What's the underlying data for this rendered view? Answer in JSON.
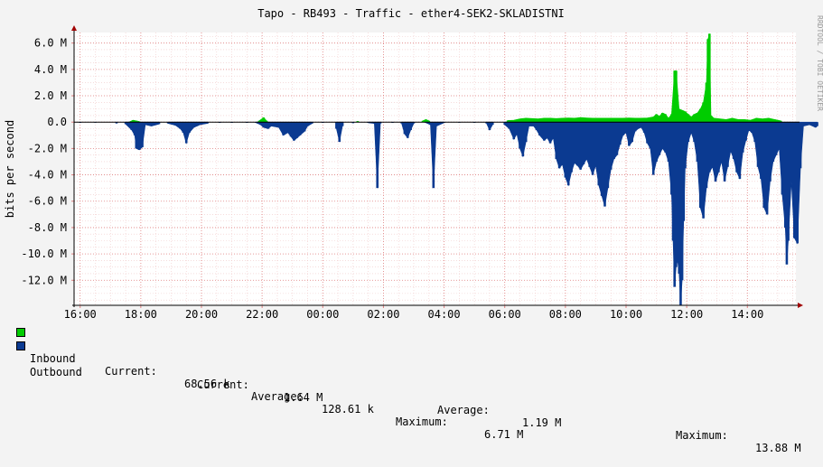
{
  "chart_data": {
    "type": "area",
    "title": "Tapo - RB493 - Traffic - ether4-SEK2-SKLADISTNI",
    "ylabel": "bits per second",
    "side_label": "RRDTOOL / TOBI OETIKER",
    "x_tick_labels": [
      "16:00",
      "18:00",
      "20:00",
      "22:00",
      "00:00",
      "02:00",
      "04:00",
      "06:00",
      "08:00",
      "10:00",
      "12:00",
      "14:00"
    ],
    "y_ticks": [
      6,
      4,
      2,
      0,
      -2,
      -4,
      -6,
      -8,
      -10,
      -12
    ],
    "y_tick_labels": [
      "6.0 M",
      "4.0 M",
      "2.0 M",
      "0.0",
      "-2.0 M",
      "-4.0 M",
      "-6.0 M",
      "-8.0 M",
      "-10.0 M",
      "-12.0 M"
    ],
    "ylim": [
      -13.9,
      6.8
    ],
    "xlim_hours": [
      15.8,
      39.6
    ],
    "grid": true,
    "series": [
      {
        "name": "Inbound",
        "color": "#00cc00",
        "unit": "M bit/s",
        "points": [
          [
            17.65,
            0.05
          ],
          [
            17.75,
            0.15
          ],
          [
            17.85,
            0.1
          ],
          [
            17.95,
            0.05
          ],
          [
            21.9,
            0.1
          ],
          [
            22.05,
            0.35
          ],
          [
            22.15,
            0.1
          ],
          [
            25.15,
            0.08
          ],
          [
            27.3,
            0.1
          ],
          [
            27.4,
            0.2
          ],
          [
            27.5,
            0.1
          ],
          [
            30.1,
            0.12
          ],
          [
            30.3,
            0.15
          ],
          [
            30.5,
            0.25
          ],
          [
            30.7,
            0.3
          ],
          [
            30.9,
            0.28
          ],
          [
            31.1,
            0.25
          ],
          [
            31.3,
            0.3
          ],
          [
            31.5,
            0.3
          ],
          [
            31.7,
            0.28
          ],
          [
            31.9,
            0.3
          ],
          [
            32.1,
            0.32
          ],
          [
            32.3,
            0.3
          ],
          [
            32.5,
            0.35
          ],
          [
            32.7,
            0.32
          ],
          [
            32.9,
            0.3
          ],
          [
            33.1,
            0.3
          ],
          [
            33.3,
            0.3
          ],
          [
            33.5,
            0.3
          ],
          [
            33.7,
            0.3
          ],
          [
            33.9,
            0.3
          ],
          [
            34.1,
            0.32
          ],
          [
            34.3,
            0.3
          ],
          [
            34.5,
            0.3
          ],
          [
            34.7,
            0.32
          ],
          [
            34.9,
            0.4
          ],
          [
            35.0,
            0.6
          ],
          [
            35.1,
            0.45
          ],
          [
            35.2,
            0.7
          ],
          [
            35.3,
            0.6
          ],
          [
            35.4,
            0.3
          ],
          [
            35.5,
            0.6
          ],
          [
            35.6,
            3.9
          ],
          [
            35.65,
            3.9
          ],
          [
            35.75,
            1.0
          ],
          [
            35.85,
            0.9
          ],
          [
            35.95,
            0.8
          ],
          [
            36.05,
            0.6
          ],
          [
            36.15,
            0.4
          ],
          [
            36.25,
            0.6
          ],
          [
            36.35,
            0.7
          ],
          [
            36.45,
            1.0
          ],
          [
            36.55,
            1.5
          ],
          [
            36.65,
            3.0
          ],
          [
            36.7,
            6.3
          ],
          [
            36.75,
            6.71
          ],
          [
            36.8,
            0.5
          ],
          [
            36.9,
            0.3
          ],
          [
            37.1,
            0.25
          ],
          [
            37.3,
            0.2
          ],
          [
            37.5,
            0.3
          ],
          [
            37.7,
            0.2
          ],
          [
            37.9,
            0.2
          ],
          [
            38.1,
            0.15
          ],
          [
            38.3,
            0.3
          ],
          [
            38.5,
            0.25
          ],
          [
            38.7,
            0.3
          ],
          [
            38.9,
            0.2
          ],
          [
            39.1,
            0.1
          ]
        ]
      },
      {
        "name": "Outbound",
        "color": "#0b3a91",
        "unit": "M bit/s",
        "points": [
          [
            16.0,
            -0.05
          ],
          [
            16.5,
            -0.04
          ],
          [
            17.2,
            -0.1
          ],
          [
            17.5,
            -0.15
          ],
          [
            17.7,
            -0.6
          ],
          [
            17.8,
            -1.0
          ],
          [
            17.85,
            -2.0
          ],
          [
            17.95,
            -2.1
          ],
          [
            18.05,
            -1.9
          ],
          [
            18.15,
            -0.2
          ],
          [
            18.35,
            -0.3
          ],
          [
            18.6,
            -0.15
          ],
          [
            18.9,
            -0.1
          ],
          [
            19.15,
            -0.25
          ],
          [
            19.3,
            -0.5
          ],
          [
            19.4,
            -0.8
          ],
          [
            19.5,
            -1.6
          ],
          [
            19.6,
            -0.8
          ],
          [
            19.75,
            -0.4
          ],
          [
            19.85,
            -0.3
          ],
          [
            19.95,
            -0.2
          ],
          [
            20.2,
            -0.1
          ],
          [
            20.6,
            -0.05
          ],
          [
            21.0,
            -0.05
          ],
          [
            21.5,
            -0.05
          ],
          [
            21.8,
            -0.05
          ],
          [
            21.95,
            -0.2
          ],
          [
            22.05,
            -0.4
          ],
          [
            22.2,
            -0.5
          ],
          [
            22.3,
            -0.3
          ],
          [
            22.55,
            -0.4
          ],
          [
            22.7,
            -1.0
          ],
          [
            22.85,
            -0.8
          ],
          [
            22.95,
            -1.1
          ],
          [
            23.05,
            -1.4
          ],
          [
            23.15,
            -1.2
          ],
          [
            23.25,
            -1.0
          ],
          [
            23.4,
            -0.7
          ],
          [
            23.5,
            -0.3
          ],
          [
            23.65,
            -0.1
          ],
          [
            24.0,
            -0.05
          ],
          [
            24.45,
            -0.5
          ],
          [
            24.55,
            -1.5
          ],
          [
            24.65,
            -0.3
          ],
          [
            25.0,
            -0.08
          ],
          [
            25.5,
            -0.05
          ],
          [
            25.7,
            -0.1
          ],
          [
            25.8,
            -5.0
          ],
          [
            25.9,
            -0.1
          ],
          [
            26.3,
            -0.05
          ],
          [
            26.6,
            -0.1
          ],
          [
            26.7,
            -0.9
          ],
          [
            26.8,
            -1.2
          ],
          [
            26.9,
            -0.6
          ],
          [
            27.0,
            -0.1
          ],
          [
            27.4,
            -0.05
          ],
          [
            27.55,
            -0.2
          ],
          [
            27.65,
            -5.0
          ],
          [
            27.75,
            -0.3
          ],
          [
            28.0,
            -0.05
          ],
          [
            28.5,
            -0.03
          ],
          [
            29.0,
            -0.05
          ],
          [
            29.4,
            -0.1
          ],
          [
            29.5,
            -0.6
          ],
          [
            29.6,
            -0.2
          ],
          [
            30.0,
            -0.2
          ],
          [
            30.15,
            -0.5
          ],
          [
            30.3,
            -1.3
          ],
          [
            30.4,
            -0.9
          ],
          [
            30.5,
            -2.0
          ],
          [
            30.6,
            -2.6
          ],
          [
            30.7,
            -1.5
          ],
          [
            30.8,
            -0.3
          ],
          [
            30.95,
            -0.3
          ],
          [
            31.05,
            -0.6
          ],
          [
            31.15,
            -1.0
          ],
          [
            31.3,
            -1.4
          ],
          [
            31.4,
            -1.2
          ],
          [
            31.5,
            -1.6
          ],
          [
            31.6,
            -1.2
          ],
          [
            31.7,
            -2.8
          ],
          [
            31.8,
            -3.5
          ],
          [
            31.9,
            -3.2
          ],
          [
            32.0,
            -4.2
          ],
          [
            32.1,
            -4.8
          ],
          [
            32.2,
            -3.8
          ],
          [
            32.3,
            -3.1
          ],
          [
            32.4,
            -3.3
          ],
          [
            32.5,
            -3.6
          ],
          [
            32.6,
            -3.2
          ],
          [
            32.7,
            -2.8
          ],
          [
            32.8,
            -3.4
          ],
          [
            32.9,
            -4.0
          ],
          [
            33.0,
            -3.3
          ],
          [
            33.1,
            -4.8
          ],
          [
            33.2,
            -5.6
          ],
          [
            33.3,
            -6.4
          ],
          [
            33.4,
            -5.0
          ],
          [
            33.5,
            -3.6
          ],
          [
            33.6,
            -2.8
          ],
          [
            33.7,
            -2.5
          ],
          [
            33.8,
            -1.7
          ],
          [
            33.9,
            -1.0
          ],
          [
            34.0,
            -0.8
          ],
          [
            34.1,
            -1.8
          ],
          [
            34.2,
            -1.5
          ],
          [
            34.3,
            -0.7
          ],
          [
            34.4,
            -0.5
          ],
          [
            34.5,
            -0.4
          ],
          [
            34.6,
            -0.8
          ],
          [
            34.7,
            -1.6
          ],
          [
            34.8,
            -2.0
          ],
          [
            34.9,
            -4.0
          ],
          [
            35.0,
            -3.0
          ],
          [
            35.1,
            -2.5
          ],
          [
            35.2,
            -2.0
          ],
          [
            35.3,
            -2.3
          ],
          [
            35.4,
            -3.0
          ],
          [
            35.5,
            -5.5
          ],
          [
            35.55,
            -9.0
          ],
          [
            35.6,
            -12.5
          ],
          [
            35.65,
            -11.0
          ],
          [
            35.7,
            -10.5
          ],
          [
            35.75,
            -11.5
          ],
          [
            35.8,
            -13.88
          ],
          [
            35.85,
            -12.0
          ],
          [
            35.9,
            -7.5
          ],
          [
            35.95,
            -3.5
          ],
          [
            36.05,
            -1.5
          ],
          [
            36.15,
            -0.8
          ],
          [
            36.25,
            -1.5
          ],
          [
            36.35,
            -3.0
          ],
          [
            36.45,
            -6.5
          ],
          [
            36.55,
            -7.3
          ],
          [
            36.65,
            -5.0
          ],
          [
            36.75,
            -3.8
          ],
          [
            36.85,
            -3.4
          ],
          [
            36.95,
            -4.5
          ],
          [
            37.05,
            -3.8
          ],
          [
            37.15,
            -3.0
          ],
          [
            37.25,
            -4.5
          ],
          [
            37.35,
            -3.4
          ],
          [
            37.45,
            -2.2
          ],
          [
            37.55,
            -2.8
          ],
          [
            37.65,
            -3.8
          ],
          [
            37.75,
            -4.3
          ],
          [
            37.85,
            -2.3
          ],
          [
            37.95,
            -1.4
          ],
          [
            38.05,
            -0.6
          ],
          [
            38.15,
            -0.8
          ],
          [
            38.25,
            -1.5
          ],
          [
            38.35,
            -3.4
          ],
          [
            38.45,
            -4.3
          ],
          [
            38.55,
            -6.5
          ],
          [
            38.65,
            -7.0
          ],
          [
            38.75,
            -4.5
          ],
          [
            38.85,
            -3.0
          ],
          [
            38.95,
            -2.5
          ],
          [
            39.05,
            -2.0
          ],
          [
            39.15,
            -5.5
          ],
          [
            39.25,
            -8.0
          ],
          [
            39.3,
            -10.8
          ],
          [
            39.35,
            -9.0
          ],
          [
            39.45,
            -4.5
          ],
          [
            39.55,
            -8.8
          ],
          [
            39.65,
            -9.2
          ],
          [
            39.75,
            -3.5
          ],
          [
            39.85,
            -0.3
          ],
          [
            40.05,
            -0.2
          ],
          [
            40.25,
            -0.4
          ],
          [
            40.3,
            -0.3
          ],
          [
            40.8,
            -0.1
          ],
          [
            41.4,
            -0.3
          ],
          [
            41.5,
            -1.6
          ]
        ]
      }
    ]
  },
  "legend": {
    "inbound": {
      "name": "Inbound",
      "current_label": "Current:",
      "current": "68.56 k",
      "average_label": "Average:",
      "average": "128.61 k",
      "maximum_label": "Maximum:",
      "maximum": "6.71 M",
      "color": "#00cc00"
    },
    "outbound": {
      "name": "Outbound",
      "current_label": "Current:",
      "current": "1.64 M",
      "average_label": "Average:",
      "average": "1.19 M",
      "maximum_label": "Maximum:",
      "maximum": "13.88 M",
      "color": "#0b3a91"
    }
  }
}
